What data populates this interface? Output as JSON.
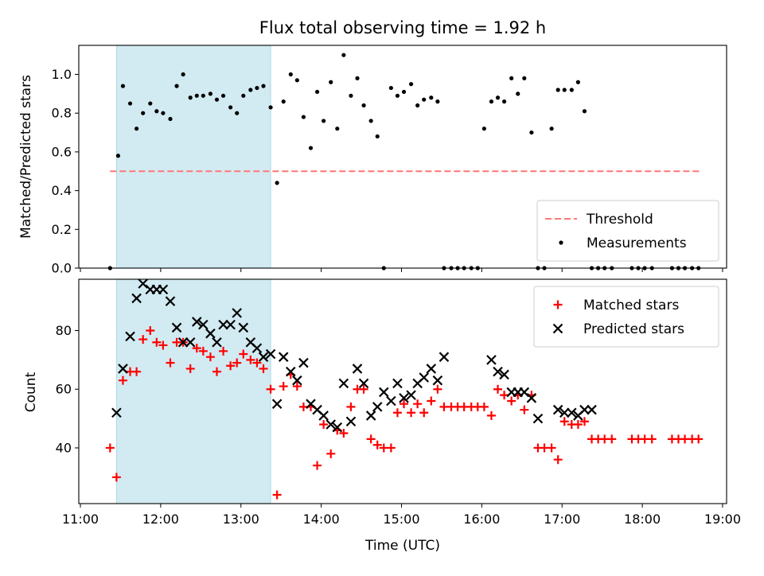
{
  "chart_data": {
    "type": "scatter",
    "title": "Flux total observing time = 1.92 h",
    "xlabel": "Time (UTC)",
    "x_unit": "hours UTC",
    "xlim": [
      10.98,
      19.05
    ],
    "xticks": [
      11,
      12,
      13,
      14,
      15,
      16,
      17,
      18,
      19
    ],
    "xtick_labels": [
      "11:00",
      "12:00",
      "13:00",
      "14:00",
      "15:00",
      "16:00",
      "17:00",
      "18:00",
      "19:00"
    ],
    "shaded_region": {
      "x_start": 11.45,
      "x_end": 13.37,
      "color": "#add8e6"
    },
    "panels": [
      {
        "id": "ratio",
        "ylabel": "Matched/Predicted stars",
        "ylim": [
          0,
          1.15
        ],
        "yticks": [
          0,
          0.2,
          0.4,
          0.6,
          0.8,
          1.0
        ],
        "ytick_labels": [
          "0.0",
          "0.2",
          "0.4",
          "0.6",
          "0.8",
          "1.0"
        ],
        "threshold": {
          "name": "Threshold",
          "value": 0.5,
          "x_range": [
            11.37,
            18.72
          ],
          "color": "#ff7777"
        },
        "legend_location": "lower right",
        "series": [
          {
            "name": "Measurements",
            "marker": "dot",
            "color": "#000000",
            "x": [
              11.37,
              11.47,
              11.53,
              11.62,
              11.7,
              11.78,
              11.87,
              11.95,
              12.03,
              12.12,
              12.2,
              12.28,
              12.37,
              12.45,
              12.53,
              12.62,
              12.7,
              12.78,
              12.87,
              12.95,
              13.03,
              13.12,
              13.2,
              13.28,
              13.37,
              13.45,
              13.53,
              13.62,
              13.7,
              13.78,
              13.87,
              13.95,
              14.03,
              14.12,
              14.2,
              14.28,
              14.37,
              14.45,
              14.53,
              14.62,
              14.7,
              14.78,
              14.87,
              14.95,
              15.03,
              15.12,
              15.2,
              15.28,
              15.37,
              15.45,
              15.53,
              15.62,
              15.7,
              15.78,
              15.87,
              15.95,
              16.03,
              16.12,
              16.2,
              16.28,
              16.37,
              16.45,
              16.53,
              16.62,
              16.7,
              16.78,
              16.87,
              16.95,
              17.03,
              17.12,
              17.2,
              17.28,
              17.37,
              17.45,
              17.53,
              17.62,
              17.87,
              17.95,
              18.03,
              18.12,
              18.37,
              18.45,
              18.53,
              18.62,
              18.7
            ],
            "y": [
              0.0,
              0.58,
              0.94,
              0.85,
              0.72,
              0.8,
              0.85,
              0.81,
              0.8,
              0.77,
              0.94,
              1.0,
              0.88,
              0.89,
              0.89,
              0.9,
              0.87,
              0.89,
              0.83,
              0.8,
              0.89,
              0.92,
              0.93,
              0.94,
              0.83,
              0.44,
              0.86,
              1.0,
              0.97,
              0.78,
              0.62,
              0.91,
              0.76,
              0.96,
              0.72,
              1.1,
              0.89,
              0.98,
              0.84,
              0.76,
              0.68,
              0.0,
              0.93,
              0.89,
              0.91,
              0.95,
              0.84,
              0.87,
              0.88,
              0.86,
              0.0,
              0.0,
              0.0,
              0.0,
              0.0,
              0.0,
              0.72,
              0.86,
              0.88,
              0.86,
              0.98,
              0.9,
              0.98,
              0.7,
              0.0,
              0.0,
              0.72,
              0.92,
              0.92,
              0.92,
              0.96,
              0.81,
              0.0,
              0.0,
              0.0,
              0.0,
              0.0,
              0.0,
              0.0,
              0.0,
              0.0,
              0.0,
              0.0,
              0.0,
              0.0
            ]
          }
        ]
      },
      {
        "id": "counts",
        "ylabel": "Count",
        "ylim": [
          21,
          97.5
        ],
        "yticks": [
          40,
          60,
          80
        ],
        "ytick_labels": [
          "40",
          "60",
          "80"
        ],
        "legend_location": "upper right",
        "series": [
          {
            "name": "Matched stars",
            "marker": "plus",
            "color": "#ff0000",
            "x": [
              11.37,
              11.45,
              11.53,
              11.62,
              11.7,
              11.78,
              11.87,
              11.95,
              12.03,
              12.12,
              12.2,
              12.28,
              12.37,
              12.45,
              12.53,
              12.62,
              12.7,
              12.78,
              12.87,
              12.95,
              13.03,
              13.12,
              13.2,
              13.28,
              13.37,
              13.45,
              13.53,
              13.62,
              13.7,
              13.78,
              13.87,
              13.95,
              14.03,
              14.12,
              14.2,
              14.28,
              14.37,
              14.45,
              14.53,
              14.62,
              14.7,
              14.78,
              14.87,
              14.95,
              15.03,
              15.12,
              15.2,
              15.28,
              15.37,
              15.45,
              15.53,
              15.62,
              15.7,
              15.78,
              15.87,
              15.95,
              16.03,
              16.12,
              16.2,
              16.28,
              16.37,
              16.45,
              16.53,
              16.62,
              16.7,
              16.78,
              16.87,
              16.95,
              17.03,
              17.12,
              17.2,
              17.28,
              17.37,
              17.45,
              17.53,
              17.62,
              17.87,
              17.95,
              18.03,
              18.12,
              18.37,
              18.45,
              18.53,
              18.62,
              18.7
            ],
            "y": [
              40,
              30,
              63,
              66,
              66,
              77,
              80,
              76,
              75,
              69,
              76,
              76,
              67,
              74,
              73,
              71,
              66,
              73,
              68,
              69,
              72,
              70,
              69,
              67,
              60,
              24,
              61,
              65,
              61,
              54,
              54,
              34,
              48,
              38,
              46,
              45,
              54,
              60,
              60,
              43,
              41,
              40,
              40,
              52,
              55,
              52,
              55,
              52,
              56,
              60,
              54,
              54,
              54,
              54,
              54,
              54,
              54,
              51,
              60,
              58,
              56,
              58,
              53,
              58,
              40,
              40,
              40,
              36,
              49,
              48,
              48,
              49,
              43,
              43,
              43,
              43,
              43,
              43,
              43,
              43,
              43,
              43,
              43,
              43,
              43
            ]
          },
          {
            "name": "Predicted stars",
            "marker": "x",
            "color": "#000000",
            "x": [
              11.45,
              11.53,
              11.62,
              11.7,
              11.78,
              11.87,
              11.95,
              12.03,
              12.12,
              12.2,
              12.28,
              12.37,
              12.45,
              12.53,
              12.62,
              12.7,
              12.78,
              12.87,
              12.95,
              13.03,
              13.12,
              13.2,
              13.28,
              13.37,
              13.45,
              13.53,
              13.62,
              13.7,
              13.78,
              13.87,
              13.95,
              14.03,
              14.12,
              14.2,
              14.28,
              14.37,
              14.45,
              14.53,
              14.62,
              14.7,
              14.78,
              14.87,
              14.95,
              15.03,
              15.12,
              15.2,
              15.28,
              15.37,
              15.45,
              15.53,
              16.12,
              16.2,
              16.28,
              16.37,
              16.45,
              16.53,
              16.62,
              16.7,
              16.95,
              17.03,
              17.12,
              17.2,
              17.28,
              17.37
            ],
            "y": [
              52,
              67,
              78,
              91,
              96,
              94,
              94,
              94,
              90,
              81,
              76,
              76,
              83,
              82,
              79,
              76,
              82,
              82,
              86,
              81,
              76,
              74,
              71,
              72,
              55,
              71,
              66,
              63,
              69,
              55,
              53,
              51,
              48,
              47,
              62,
              49,
              67,
              62,
              51,
              54,
              59,
              56,
              62,
              57,
              58,
              62,
              64,
              67,
              63,
              71,
              70,
              66,
              65,
              59,
              59,
              59,
              57,
              50,
              53,
              52,
              52,
              51,
              53,
              53
            ]
          }
        ]
      }
    ]
  }
}
